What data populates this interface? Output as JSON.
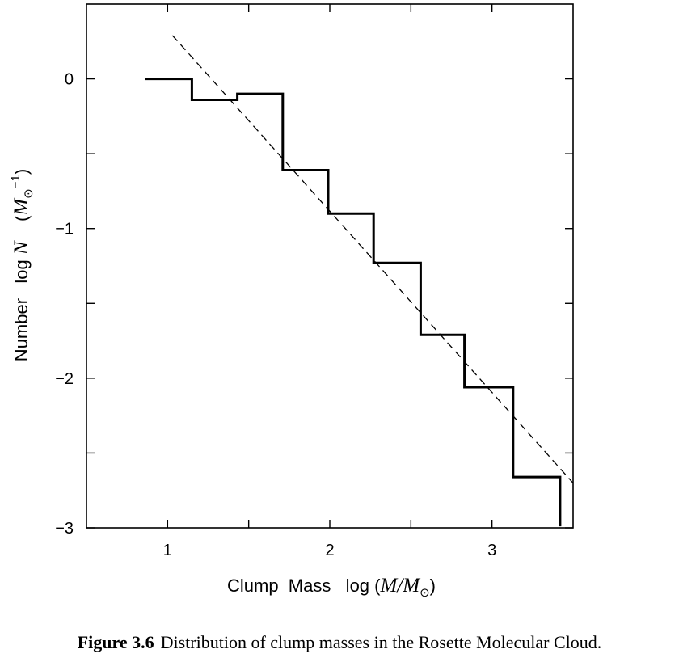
{
  "chart_data": {
    "type": "line",
    "xlabel": {
      "prefix": "Clump  Mass   log (",
      "var": "M",
      "slash": "/",
      "var2": "M",
      "sub": "⊙",
      "suffix": ")"
    },
    "ylabel": {
      "prefix": "Number   log ",
      "var": "N",
      "gap": "    (",
      "var2": "M",
      "sub": "⊙",
      "sup": "−1",
      "suffix": ")"
    },
    "xlim": [
      0.5,
      3.5
    ],
    "ylim": [
      -3,
      0.5
    ],
    "x_ticks": [
      1,
      1.5,
      2,
      2.5,
      3
    ],
    "x_tick_labels": [
      "1",
      "",
      "2",
      "",
      "3"
    ],
    "y_ticks": [
      0,
      -0.5,
      -1,
      -1.5,
      -2,
      -2.5,
      -3
    ],
    "y_tick_labels": [
      "0",
      "",
      "−1",
      "",
      "−2",
      "",
      "−3"
    ],
    "grid": false,
    "series": [
      {
        "style": "step-solid",
        "points": [
          [
            0.86,
            0.0
          ],
          [
            1.15,
            0.0
          ],
          [
            1.15,
            -0.14
          ],
          [
            1.43,
            -0.14
          ],
          [
            1.43,
            -0.1
          ],
          [
            1.71,
            -0.1
          ],
          [
            1.71,
            -0.61
          ],
          [
            1.99,
            -0.61
          ],
          [
            1.99,
            -0.9
          ],
          [
            2.27,
            -0.9
          ],
          [
            2.27,
            -1.23
          ],
          [
            2.56,
            -1.23
          ],
          [
            2.56,
            -1.71
          ],
          [
            2.83,
            -1.71
          ],
          [
            2.83,
            -2.06
          ],
          [
            3.13,
            -2.06
          ],
          [
            3.13,
            -2.66
          ],
          [
            3.42,
            -2.66
          ],
          [
            3.42,
            -2.99
          ]
        ]
      },
      {
        "style": "dashed-fit",
        "points": [
          [
            1.03,
            0.29
          ],
          [
            3.5,
            -2.7
          ]
        ]
      }
    ]
  },
  "caption": {
    "label": "Figure 3.6",
    "text": "Distribution of clump masses in the Rosette Molecular Cloud."
  }
}
